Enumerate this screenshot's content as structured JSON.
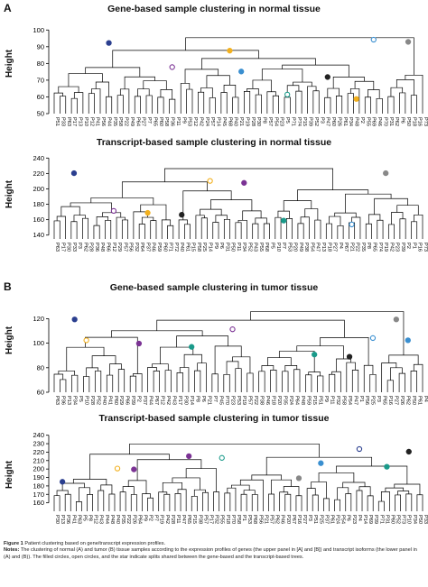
{
  "figure_label": "Figure 1",
  "figure_caption": "Patient clustering based on gene/transcript expression profiles.",
  "notes_label": "Notes:",
  "notes_text": "The clustering of normal (A) and tumor (B) tissue samples according to the expression profiles of genes (the upper panel in [A] and [B]) and transcript isoforms (the lower panel in (A) and (B)). The filled circles, open circles, and the star indicate splits shared between the gene-based and the transcript-based trees.",
  "panel_labels": [
    "A",
    "B"
  ],
  "marker_colors": [
    "#2b3f8f",
    "#7b3294",
    "#f2b01e",
    "#1a9a8a",
    "#3a8fd0",
    "#222222",
    "#888888"
  ],
  "chart_data": [
    {
      "type": "dendrogram",
      "title": "Gene-based sample clustering in normal tissue",
      "ylabel": "Height",
      "yticks": [
        50,
        60,
        70,
        80,
        90,
        100
      ],
      "ylim": [
        50,
        105
      ],
      "grid": false,
      "leaves": [
        "P51",
        "P33",
        "P63",
        "P17",
        "P13",
        "P10",
        "P12",
        "P41",
        "P56",
        "P44",
        "P35",
        "P58",
        "P22",
        "P49",
        "P64",
        "P27",
        "P7",
        "P65",
        "P60",
        "P58",
        "P36",
        "P11",
        "P9",
        "P53",
        "P12",
        "P42",
        "P24",
        "P57",
        "P14",
        "P45",
        "P68",
        "P40",
        "P21",
        "P19",
        "P28",
        "P30",
        "P8",
        "P57",
        "P54",
        "P23",
        "P5",
        "P71",
        "P74",
        "P15",
        "P39",
        "P52",
        "P3",
        "P47",
        "P60",
        "P26",
        "P61",
        "P34",
        "P48",
        "P2",
        "P55",
        "P69",
        "P46",
        "P70",
        "P31",
        "P62",
        "P6",
        "P50",
        "P18",
        "P16",
        "P73"
      ]
    },
    {
      "type": "dendrogram",
      "title": "Transcript-based sample clustering in normal tissue",
      "ylabel": "Height",
      "yticks": [
        140,
        160,
        180,
        200,
        220,
        240
      ],
      "ylim": [
        135,
        245
      ],
      "grid": false,
      "leaves": [
        "P63",
        "P17",
        "P30",
        "P33",
        "P3",
        "P62",
        "P28",
        "P36",
        "P48",
        "P66",
        "P12",
        "P29",
        "P57",
        "P56",
        "P32",
        "P64",
        "P37",
        "P46",
        "P59",
        "P60",
        "P71",
        "P72",
        "P40",
        "P61",
        "P15",
        "P58",
        "P25",
        "P14",
        "P9",
        "P6",
        "P31",
        "P50",
        "P11",
        "P34",
        "P52",
        "P43",
        "P55",
        "P68",
        "P5",
        "P10",
        "P7",
        "P53",
        "P20",
        "P49",
        "P38",
        "P54",
        "P47",
        "P13",
        "P18",
        "P27",
        "P4",
        "P67",
        "P21",
        "P22",
        "P35",
        "P8",
        "P65",
        "P74",
        "P19",
        "P42",
        "P23",
        "P39",
        "P2",
        "P1",
        "P16",
        "P73"
      ]
    },
    {
      "type": "dendrogram",
      "title": "Gene-based sample clustering in tumor tissue",
      "ylabel": "Height",
      "yticks": [
        60,
        80,
        100,
        120
      ],
      "ylim": [
        60,
        135
      ],
      "grid": false,
      "leaves": [
        "P63",
        "P36",
        "P13",
        "P34",
        "P5",
        "P10",
        "P28",
        "P52",
        "P40",
        "P41",
        "P60",
        "P29",
        "P66",
        "P39",
        "P2",
        "P37",
        "P44",
        "P67",
        "P12",
        "P42",
        "P43",
        "P17",
        "P30",
        "P14",
        "P8",
        "P6",
        "P21",
        "P7",
        "P45",
        "P70",
        "P23",
        "P53",
        "P19",
        "P57",
        "P22",
        "P38",
        "P46",
        "P18",
        "P20",
        "P35",
        "P24",
        "P64",
        "P48",
        "P59",
        "P15",
        "P51",
        "P9",
        "P11",
        "P32",
        "P58",
        "P54",
        "P47",
        "P1",
        "P56",
        "P25",
        "P3",
        "P65",
        "P16",
        "P27",
        "P26",
        "P62",
        "P50",
        "P61",
        "P4"
      ]
    },
    {
      "type": "dendrogram",
      "title": "Transcript-based sample clustering in tumor tissue",
      "ylabel": "Height",
      "yticks": [
        160,
        170,
        180,
        190,
        200,
        210,
        220,
        230,
        240
      ],
      "ylim": [
        150,
        245
      ],
      "grid": false,
      "leaves": [
        "P30",
        "P13",
        "P36",
        "P41",
        "P63",
        "P5",
        "P8",
        "P12",
        "P43",
        "P44",
        "P48",
        "P40",
        "P35",
        "P22",
        "P26",
        "P64",
        "P9",
        "P2",
        "P7",
        "P19",
        "P42",
        "P28",
        "P11",
        "P47",
        "P65",
        "P15",
        "P38",
        "P57",
        "P17",
        "P32",
        "P55",
        "P18",
        "P70",
        "P58",
        "P1",
        "P53",
        "P68",
        "P56",
        "P21",
        "P57",
        "P62",
        "P46",
        "P20",
        "P67",
        "P16",
        "P27",
        "P3",
        "P51",
        "P25",
        "P37",
        "P61",
        "P24",
        "P54",
        "P6",
        "P23",
        "P4",
        "P14",
        "P69",
        "P39",
        "P71",
        "P31",
        "P60",
        "P52",
        "P73",
        "P10",
        "P34",
        "P50",
        "P33"
      ]
    }
  ]
}
